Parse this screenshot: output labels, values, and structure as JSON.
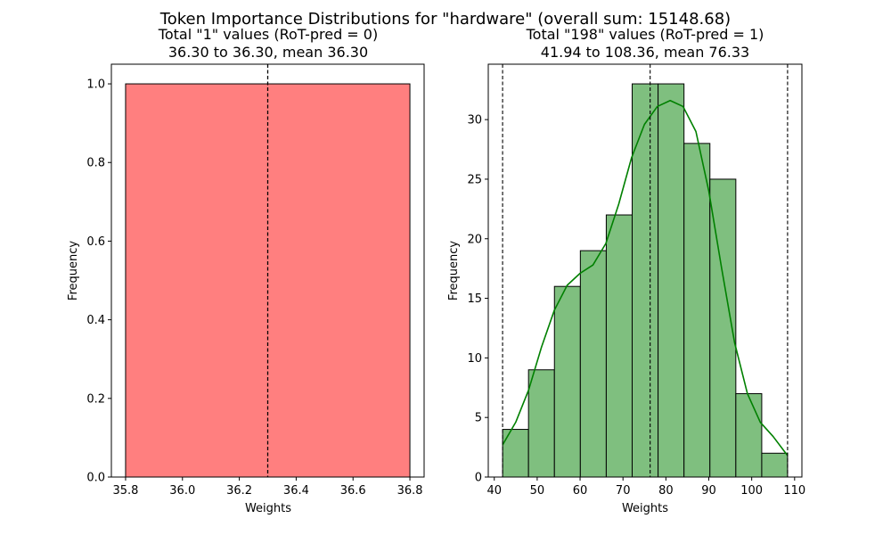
{
  "figure": {
    "suptitle": "Token Importance Distributions for \"hardware\" (overall  sum: 15148.68)"
  },
  "chart_data": [
    {
      "type": "histogram",
      "title_line1": "Total \"1\" values (RoT-pred = 0)",
      "title_line2": "36.30 to 36.30, mean 36.30",
      "xlabel": "Weights",
      "ylabel": "Frequency",
      "xlim": [
        35.75,
        36.85
      ],
      "ylim": [
        0,
        1.05
      ],
      "xticks": [
        35.8,
        36.0,
        36.2,
        36.4,
        36.6,
        36.8
      ],
      "xtick_labels": [
        "35.8",
        "36.0",
        "36.2",
        "36.4",
        "36.6",
        "36.8"
      ],
      "yticks": [
        0,
        0.2,
        0.4,
        0.6,
        0.8,
        1.0
      ],
      "ytick_labels": [
        "0.0",
        "0.2",
        "0.4",
        "0.6",
        "0.8",
        "1.0"
      ],
      "bin_edges": [
        35.8,
        36.8
      ],
      "counts": [
        1
      ],
      "color": "#ff7f7f",
      "edge_color": "#000000",
      "vlines": [
        36.3,
        36.3,
        36.3
      ]
    },
    {
      "type": "histogram",
      "title_line1": "Total \"198\" values (RoT-pred = 1)",
      "title_line2": "41.94 to 108.36, mean 76.33",
      "xlabel": "Weights",
      "ylabel": "Frequency",
      "xlim": [
        38.6,
        111.7
      ],
      "ylim": [
        0,
        34.65
      ],
      "xticks": [
        40,
        50,
        60,
        70,
        80,
        90,
        100,
        110
      ],
      "xtick_labels": [
        "40",
        "50",
        "60",
        "70",
        "80",
        "90",
        "100",
        "110"
      ],
      "yticks": [
        0,
        5,
        10,
        15,
        20,
        25,
        30
      ],
      "ytick_labels": [
        "0",
        "5",
        "10",
        "15",
        "20",
        "25",
        "30"
      ],
      "bin_edges": [
        41.94,
        47.98,
        54.02,
        60.06,
        66.1,
        72.14,
        78.18,
        84.22,
        90.26,
        96.3,
        102.34,
        108.36
      ],
      "counts": [
        4,
        9,
        16,
        19,
        22,
        33,
        33,
        28,
        25,
        7,
        2
      ],
      "color": "#7fbf7f",
      "edge_color": "#000000",
      "kde_color": "#008000",
      "kde": {
        "x": [
          41.94,
          45,
          48,
          51,
          54,
          57,
          60,
          63,
          66,
          69,
          72,
          75,
          78,
          81,
          84,
          87,
          90,
          93,
          96,
          99,
          102,
          105,
          108.36
        ],
        "y": [
          2.7,
          4.6,
          7.3,
          10.9,
          14.0,
          16.1,
          17.1,
          17.8,
          19.6,
          22.9,
          26.8,
          29.6,
          31.1,
          31.6,
          31.1,
          29.0,
          24.0,
          17.5,
          11.3,
          7.0,
          4.6,
          3.4,
          1.8
        ]
      },
      "vlines": [
        41.94,
        76.33,
        108.36
      ]
    }
  ]
}
